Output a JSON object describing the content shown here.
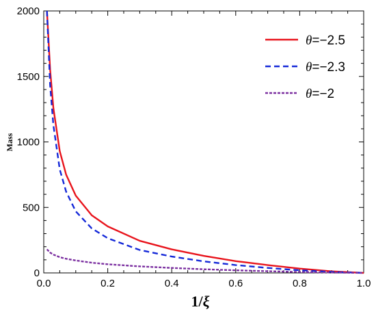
{
  "chart_data": {
    "type": "line",
    "title": "",
    "xlabel": "1/",
    "xlabel_symbol": "ξ",
    "ylabel": "Mass",
    "xlim": [
      0,
      1.0
    ],
    "ylim": [
      0,
      2000
    ],
    "x_ticks": [
      0.0,
      0.2,
      0.4,
      0.6,
      0.8,
      1.0
    ],
    "x_tick_labels": [
      "0.0",
      "0.2",
      "0.4",
      "0.6",
      "0.8",
      "1.0"
    ],
    "y_ticks": [
      0,
      500,
      1000,
      1500,
      2000
    ],
    "y_tick_labels": [
      "0",
      "500",
      "1000",
      "1500",
      "2000"
    ],
    "grid": false,
    "legend_position": "top-right",
    "series": [
      {
        "name": "=−2.5",
        "symbol": "θ",
        "color": "#e8141c",
        "dash": "solid",
        "x": [
          0.01,
          0.02,
          0.03,
          0.05,
          0.07,
          0.1,
          0.15,
          0.2,
          0.3,
          0.4,
          0.5,
          0.6,
          0.7,
          0.8,
          0.9,
          1.0
        ],
        "y": [
          2000,
          1550,
          1260,
          930,
          750,
          590,
          440,
          355,
          245,
          180,
          130,
          90,
          60,
          33,
          12,
          0
        ]
      },
      {
        "name": "=−2.3",
        "symbol": "θ",
        "color": "#1428d8",
        "dash": "dashed",
        "x": [
          0.01,
          0.02,
          0.03,
          0.05,
          0.07,
          0.1,
          0.15,
          0.2,
          0.3,
          0.4,
          0.5,
          0.6,
          0.7,
          0.8,
          0.9,
          1.0
        ],
        "y": [
          2000,
          1430,
          1130,
          790,
          620,
          470,
          340,
          265,
          175,
          125,
          88,
          60,
          38,
          20,
          8,
          0
        ]
      },
      {
        "name": "=−2",
        "symbol": "θ",
        "color": "#7b2fa0",
        "dash": "dashed-short",
        "x": [
          0.01,
          0.02,
          0.03,
          0.05,
          0.07,
          0.1,
          0.15,
          0.2,
          0.3,
          0.4,
          0.5,
          0.6,
          0.7,
          0.8,
          0.9,
          1.0
        ],
        "y": [
          180,
          155,
          140,
          120,
          108,
          95,
          78,
          66,
          50,
          38,
          28,
          20,
          13,
          7,
          3,
          0
        ]
      }
    ]
  }
}
